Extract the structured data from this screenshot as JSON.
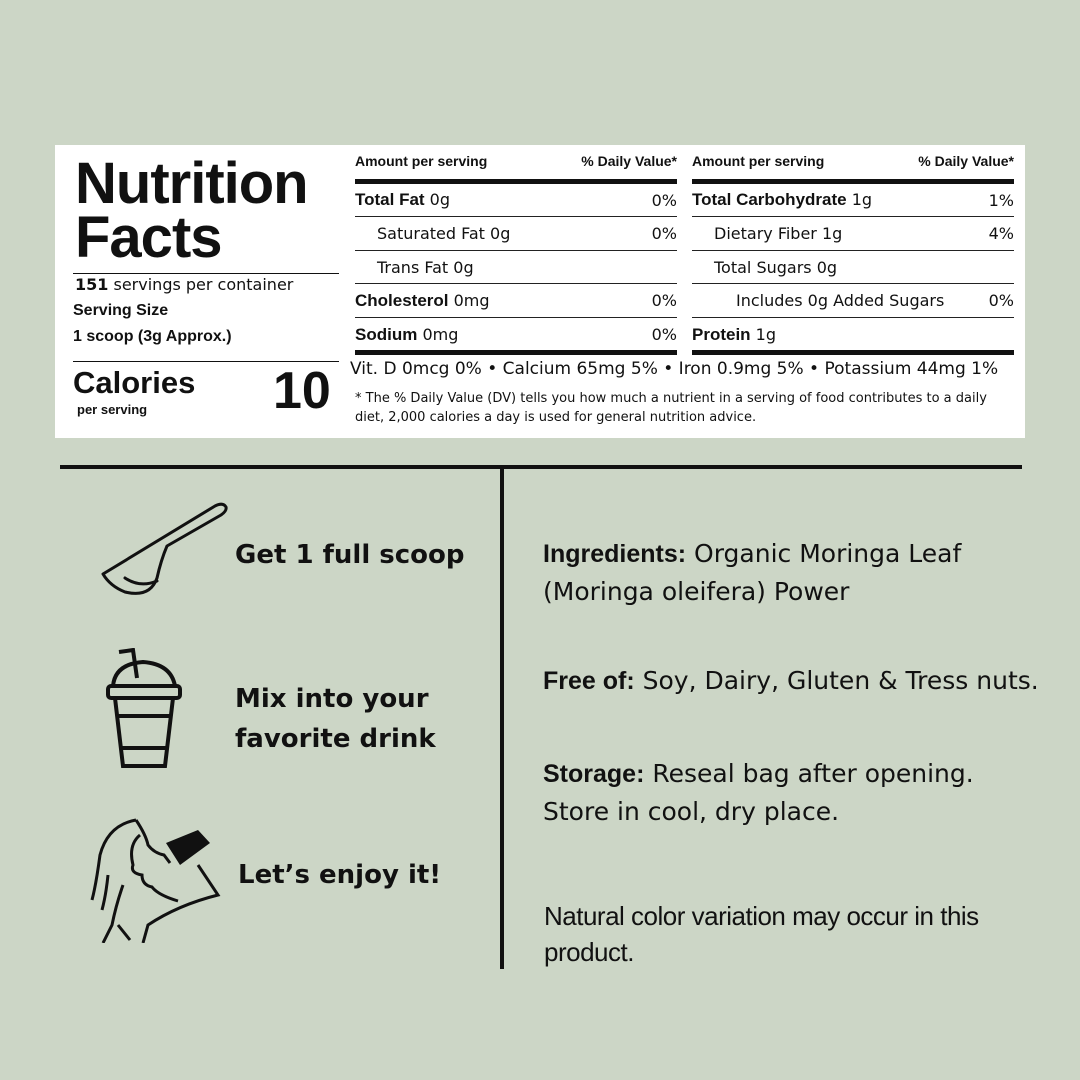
{
  "colors": {
    "background": "#ccd6c6",
    "panel": "#ffffff",
    "ink": "#111111"
  },
  "nutrition": {
    "title_line1": "Nutrition",
    "title_line2": "Facts",
    "servings_count": "151",
    "servings_label": "servings per container",
    "serving_size_label": "Serving Size",
    "serving_size_value": "1 scoop (3g Approx.)",
    "calories_label": "Calories",
    "calories_sub": "per serving",
    "calories_value": "10",
    "header_amount": "Amount per serving",
    "header_dv": "% Daily Value*",
    "left_rows": [
      {
        "name": "Total Fat",
        "amount": "0g",
        "dv": "0%",
        "bold": true,
        "indent": 0
      },
      {
        "name": "Saturated Fat",
        "amount": "0g",
        "dv": "0%",
        "bold": false,
        "indent": 1
      },
      {
        "name": "Trans Fat",
        "amount": " 0g",
        "dv": "",
        "bold": false,
        "indent": 1
      },
      {
        "name": "Cholesterol",
        "amount": "0mg",
        "dv": "0%",
        "bold": true,
        "indent": 0
      },
      {
        "name": "Sodium",
        "amount": "0mg",
        "dv": "0%",
        "bold": true,
        "indent": 0
      }
    ],
    "right_rows": [
      {
        "name": "Total Carbohydrate",
        "amount": "1g",
        "dv": "1%",
        "bold": true,
        "indent": 0
      },
      {
        "name": "Dietary Fiber",
        "amount": "1g",
        "dv": "4%",
        "bold": false,
        "indent": 1
      },
      {
        "name": "Total Sugars",
        "amount": "0g",
        "dv": "",
        "bold": false,
        "indent": 1
      },
      {
        "name": "Includes 0g Added Sugars",
        "amount": "",
        "dv": "0%",
        "bold": false,
        "indent": 2
      },
      {
        "name": "Protein",
        "amount": "1g",
        "dv": "",
        "bold": true,
        "indent": 0
      }
    ],
    "vitamins": "Vit. D 0mcg 0% • Calcium 65mg 5% • Iron 0.9mg 5% • Potassium 44mg 1%",
    "footnote": "* The % Daily Value (DV) tells you how much a nutrient in a serving of food contributes to a daily diet, 2,000 calories a day is used for general nutrition advice."
  },
  "steps": [
    {
      "icon": "scoop-icon",
      "text": "Get 1 full scoop"
    },
    {
      "icon": "drink-cup-icon",
      "text": "Mix into your favorite drink"
    },
    {
      "icon": "woman-drinking-icon",
      "text": "Let’s enjoy it!"
    }
  ],
  "info": {
    "ingredients_label": "Ingredients:",
    "ingredients_text": " Organic Moringa Leaf (Moringa oleifera) Power",
    "free_label": "Free of:",
    "free_text": " Soy, Dairy, Gluten & Tress nuts.",
    "storage_label": "Storage:",
    "storage_text": " Reseal bag after opening. Store in cool, dry place.",
    "note": "Natural color variation may occur in this product."
  }
}
